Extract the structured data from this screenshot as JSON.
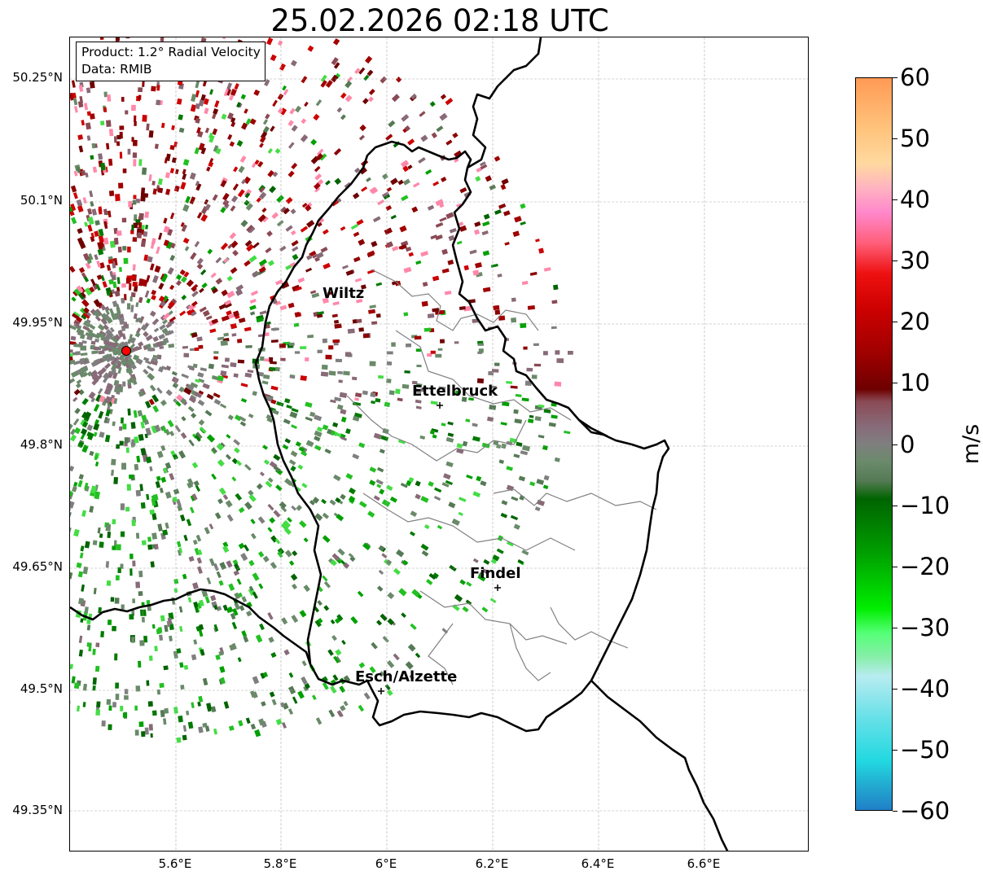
{
  "title": "25.02.2026 02:18 UTC",
  "info_box": {
    "product": "Product: 1.2° Radial Velocity",
    "data_source": "Data: RMIB"
  },
  "lat_labels": [
    "50.25°N",
    "50.1°N",
    "49.95°N",
    "49.8°N",
    "49.65°N",
    "49.5°N",
    "49.35°N"
  ],
  "lon_labels": [
    "5.6°E",
    "5.8°E",
    "6°E",
    "6.2°E",
    "6.4°E",
    "6.6°E"
  ],
  "cities": [
    {
      "name": "Wiltz"
    },
    {
      "name": "Ettelbruck"
    },
    {
      "name": "Findel"
    },
    {
      "name": "Esch/Alzette"
    }
  ],
  "colorbar": {
    "unit": "m/s",
    "ticks": [
      "60",
      "50",
      "40",
      "30",
      "20",
      "10",
      "0",
      "−10",
      "−20",
      "−30",
      "−40",
      "−50",
      "−60"
    ],
    "range": [
      -60,
      60
    ],
    "stops": [
      {
        "v": 60,
        "c": "#ff9a55"
      },
      {
        "v": 52,
        "c": "#ffc27a"
      },
      {
        "v": 46,
        "c": "#ffd9a0"
      },
      {
        "v": 42,
        "c": "#ffb3c0"
      },
      {
        "v": 38,
        "c": "#ff88cc"
      },
      {
        "v": 33,
        "c": "#ff5f7a"
      },
      {
        "v": 28,
        "c": "#ee1111"
      },
      {
        "v": 22,
        "c": "#cc0000"
      },
      {
        "v": 15,
        "c": "#a00000"
      },
      {
        "v": 9,
        "c": "#6e0000"
      },
      {
        "v": 7,
        "c": "#8a4a55"
      },
      {
        "v": 3,
        "c": "#886a78"
      },
      {
        "v": 0,
        "c": "#7f7f7f"
      },
      {
        "v": -3,
        "c": "#6a8a6a"
      },
      {
        "v": -6,
        "c": "#557a55"
      },
      {
        "v": -9,
        "c": "#006400"
      },
      {
        "v": -18,
        "c": "#00a000"
      },
      {
        "v": -27,
        "c": "#00ee00"
      },
      {
        "v": -31,
        "c": "#55ff77"
      },
      {
        "v": -35,
        "c": "#88eeaa"
      },
      {
        "v": -38,
        "c": "#b8ecf0"
      },
      {
        "v": -45,
        "c": "#66e0e8"
      },
      {
        "v": -52,
        "c": "#22d8e0"
      },
      {
        "v": -56,
        "c": "#22aad0"
      },
      {
        "v": -60,
        "c": "#2080c8"
      }
    ]
  },
  "colors": {
    "border": "#000000",
    "canton": "#808080",
    "grid": "#aaaaaa",
    "radar_site": "#ff0000"
  }
}
